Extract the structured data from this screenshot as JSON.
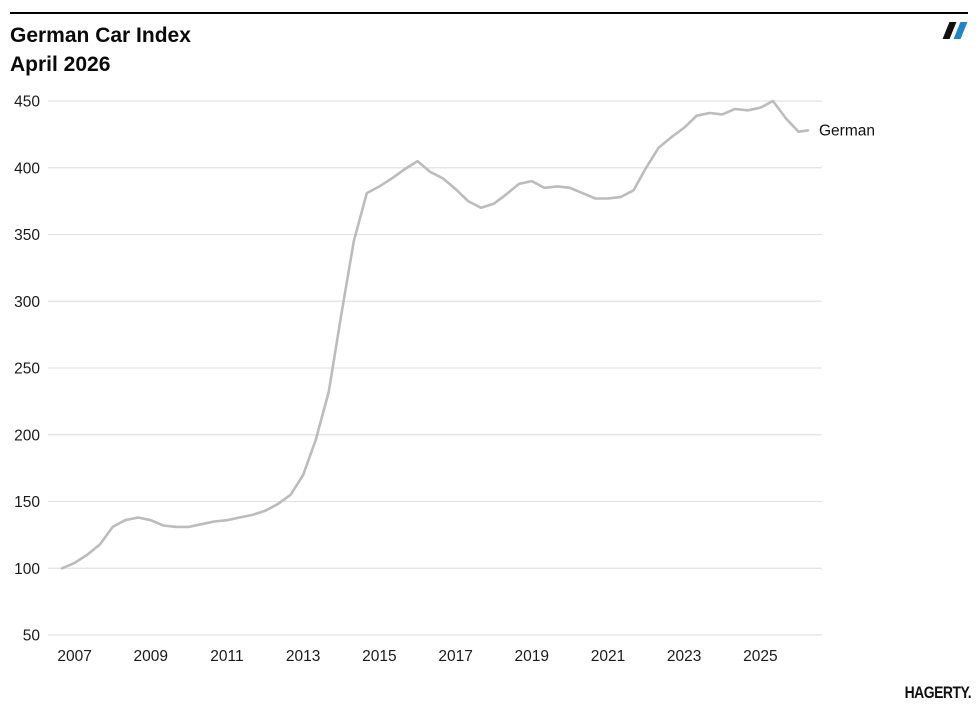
{
  "header": {
    "logo_icon": "hagerty-double-slash"
  },
  "branding": {
    "wordmark": "HAGERTY."
  },
  "colors": {
    "line_gray": "#bcbcbc",
    "grid_gray": "#e3e3e3",
    "tick_text": "#1a1a1a",
    "title_text": "#0a0a0a",
    "slash_black": "#111111",
    "slash_blue": "#1d86c8"
  },
  "chart_data": {
    "type": "line",
    "title": "German Car Index",
    "subtitle": "April 2026",
    "grid": "horizontal-only",
    "legend": "end-of-line-label",
    "ylim": [
      50,
      450
    ],
    "xlim": [
      2006.5,
      2026.6
    ],
    "y_ticks": [
      450,
      400,
      350,
      300,
      250,
      200,
      150,
      100,
      50
    ],
    "x_ticks": [
      2007,
      2009,
      2011,
      2013,
      2015,
      2017,
      2019,
      2021,
      2023,
      2025
    ],
    "series": [
      {
        "name": "German",
        "x": [
          2006.67,
          2007,
          2007.33,
          2007.67,
          2008,
          2008.33,
          2008.67,
          2009,
          2009.33,
          2009.67,
          2010,
          2010.33,
          2010.67,
          2011,
          2011.33,
          2011.67,
          2012,
          2012.33,
          2012.67,
          2013,
          2013.33,
          2013.67,
          2014,
          2014.33,
          2014.67,
          2015,
          2015.33,
          2015.67,
          2016,
          2016.33,
          2016.67,
          2017,
          2017.33,
          2017.67,
          2018,
          2018.33,
          2018.67,
          2019,
          2019.33,
          2019.67,
          2020,
          2020.33,
          2020.67,
          2021,
          2021.33,
          2021.67,
          2022,
          2022.33,
          2022.67,
          2023,
          2023.33,
          2023.67,
          2024,
          2024.33,
          2024.67,
          2025,
          2025.33,
          2025.67,
          2026,
          2026.25
        ],
        "values": [
          100,
          104,
          110,
          118,
          131,
          136,
          138,
          136,
          132,
          131,
          131,
          133,
          135,
          136,
          138,
          140,
          143,
          148,
          155,
          170,
          196,
          232,
          290,
          345,
          381,
          386,
          392,
          399,
          405,
          397,
          392,
          384,
          375,
          370,
          373,
          380,
          388,
          390,
          385,
          386,
          385,
          381,
          377,
          377,
          378,
          383,
          400,
          415,
          423,
          430,
          439,
          441,
          440,
          444,
          443,
          445,
          450,
          437,
          427,
          428
        ]
      }
    ]
  }
}
